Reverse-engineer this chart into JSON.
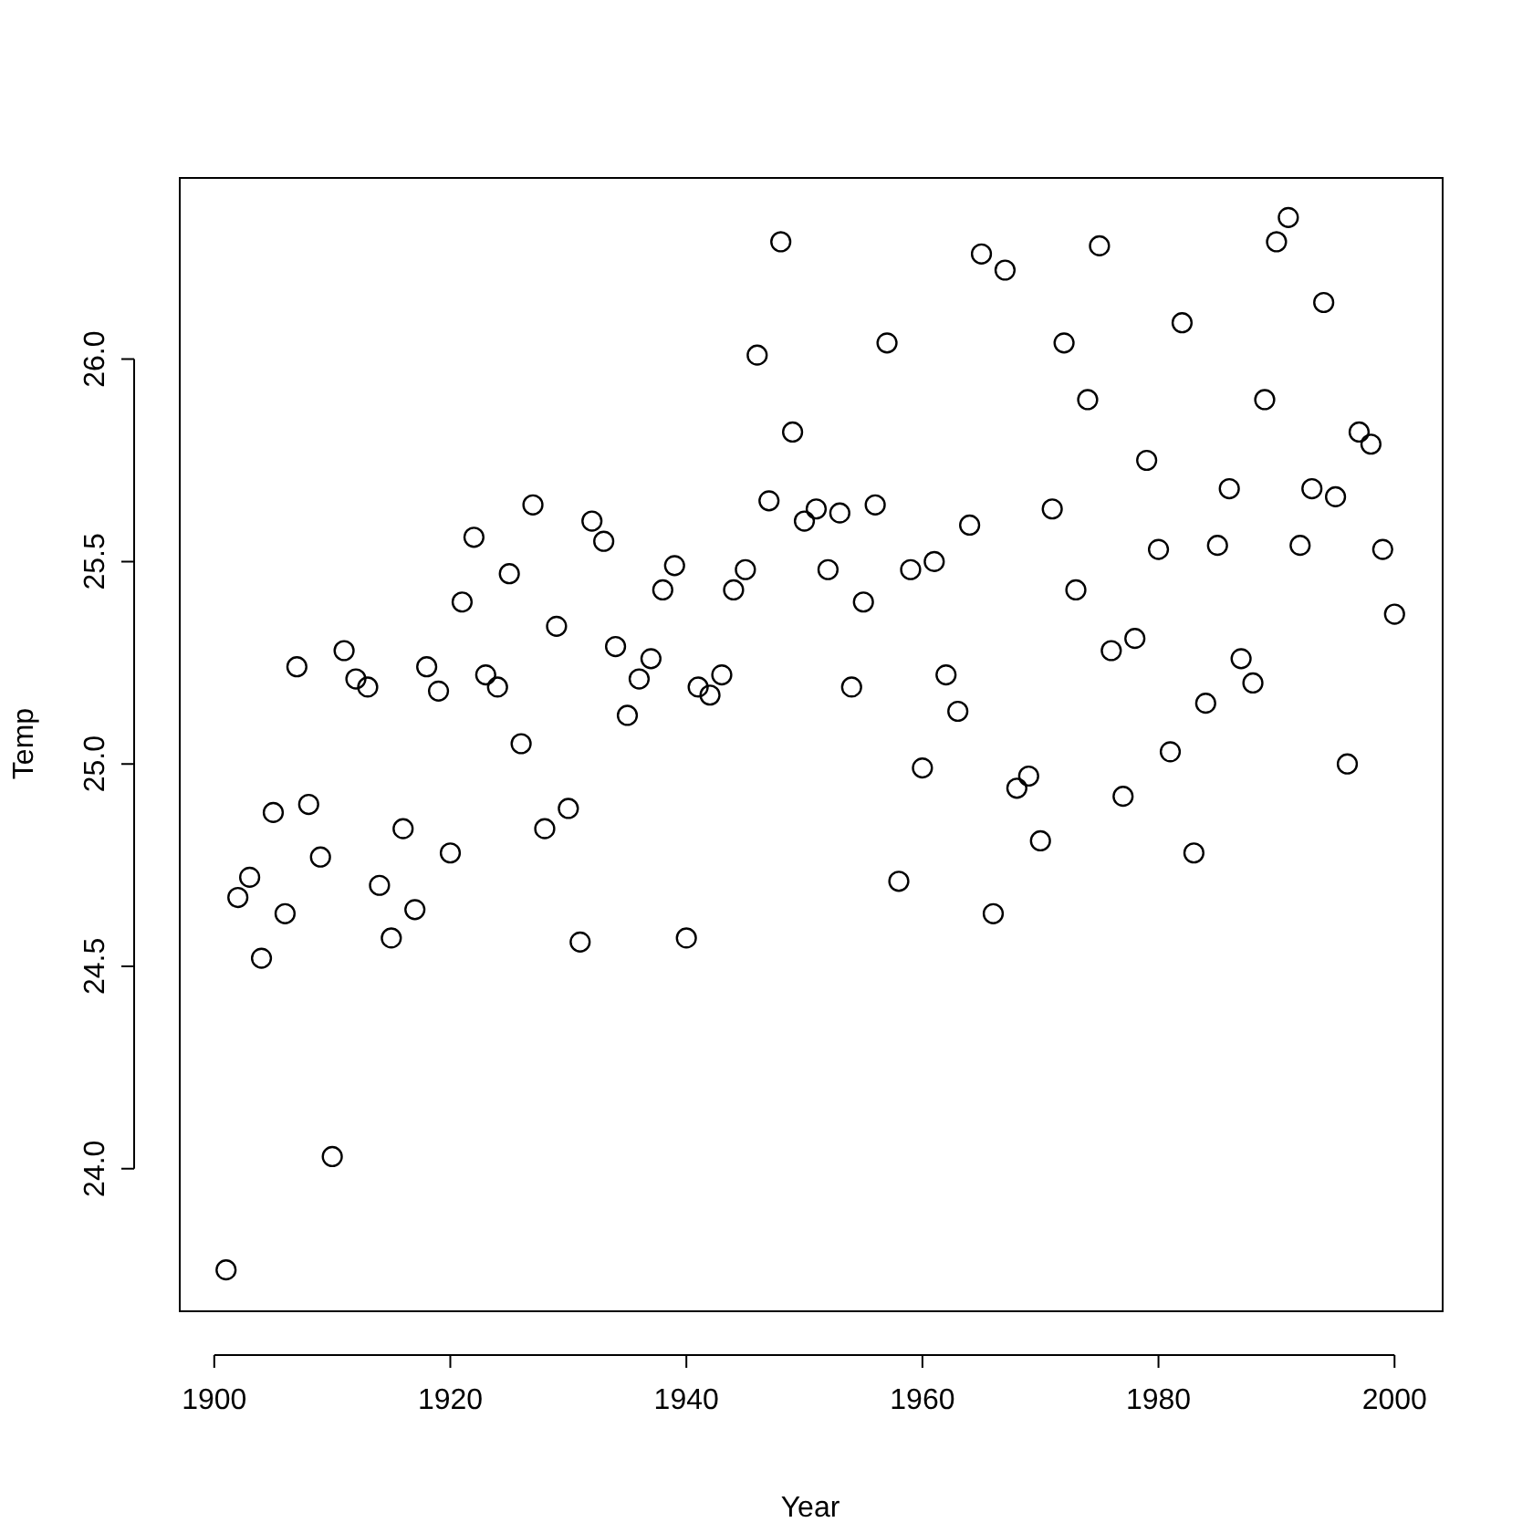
{
  "chart_data": {
    "type": "scatter",
    "xlabel": "Year",
    "ylabel": "Temp",
    "x": [
      1901,
      1902,
      1903,
      1904,
      1905,
      1906,
      1907,
      1908,
      1909,
      1910,
      1911,
      1912,
      1913,
      1914,
      1915,
      1916,
      1917,
      1918,
      1919,
      1920,
      1921,
      1922,
      1923,
      1924,
      1925,
      1926,
      1927,
      1928,
      1929,
      1930,
      1931,
      1932,
      1933,
      1934,
      1935,
      1936,
      1937,
      1938,
      1939,
      1940,
      1941,
      1942,
      1943,
      1944,
      1945,
      1946,
      1947,
      1948,
      1949,
      1950,
      1951,
      1952,
      1953,
      1954,
      1955,
      1956,
      1957,
      1958,
      1959,
      1960,
      1961,
      1962,
      1963,
      1964,
      1965,
      1966,
      1967,
      1968,
      1969,
      1970,
      1971,
      1972,
      1973,
      1974,
      1975,
      1976,
      1977,
      1978,
      1979,
      1980,
      1981,
      1982,
      1983,
      1984,
      1985,
      1986,
      1987,
      1988,
      1989,
      1990,
      1991,
      1992,
      1993,
      1994,
      1995,
      1996,
      1997,
      1998,
      1999,
      2000
    ],
    "series": [
      {
        "color": "#000000",
        "values": [
          23.75,
          24.67,
          24.72,
          24.52,
          24.88,
          24.63,
          25.24,
          24.9,
          24.77,
          24.03,
          25.28,
          25.21,
          25.19,
          24.7,
          24.57,
          24.84,
          24.64,
          25.24,
          25.18,
          24.78,
          25.4,
          25.56,
          25.22,
          25.19,
          25.47,
          25.05,
          25.64,
          24.84,
          25.34,
          24.89,
          24.56,
          25.6,
          25.55,
          25.29,
          25.12,
          25.21,
          25.26,
          25.43,
          25.49,
          24.57,
          25.19,
          25.17,
          25.22,
          25.43,
          25.48,
          26.01,
          25.65,
          26.29,
          25.82,
          25.6,
          25.63,
          25.48,
          25.62,
          25.19,
          25.4,
          25.64,
          26.04,
          24.71,
          25.48,
          24.99,
          25.5,
          25.22,
          25.13,
          25.59,
          26.26,
          24.63,
          26.22,
          24.94,
          24.97,
          24.81,
          25.63,
          26.04,
          25.43,
          25.9,
          26.28,
          25.28,
          24.92,
          25.31,
          25.75,
          25.53,
          25.03,
          26.09,
          24.78,
          25.15,
          25.54,
          25.68,
          25.26,
          25.2,
          25.9,
          26.29,
          26.35,
          25.54,
          25.68,
          26.14,
          25.66,
          25.0,
          25.82,
          25.79,
          25.53,
          25.37
        ]
      }
    ],
    "xlim": [
      1897,
      2004
    ],
    "ylim": [
      23.65,
      26.45
    ],
    "xticks": [
      1900,
      1920,
      1940,
      1960,
      1980,
      2000
    ],
    "yticks": [
      {
        "value": 24,
        "label": "24.0"
      },
      {
        "value": 24.5,
        "label": "24.5"
      },
      {
        "value": 25,
        "label": "25.0"
      },
      {
        "value": 25.5,
        "label": "25.5"
      },
      {
        "value": 26,
        "label": "26.0"
      }
    ],
    "grid": false,
    "legend": false,
    "marker": "circle"
  }
}
